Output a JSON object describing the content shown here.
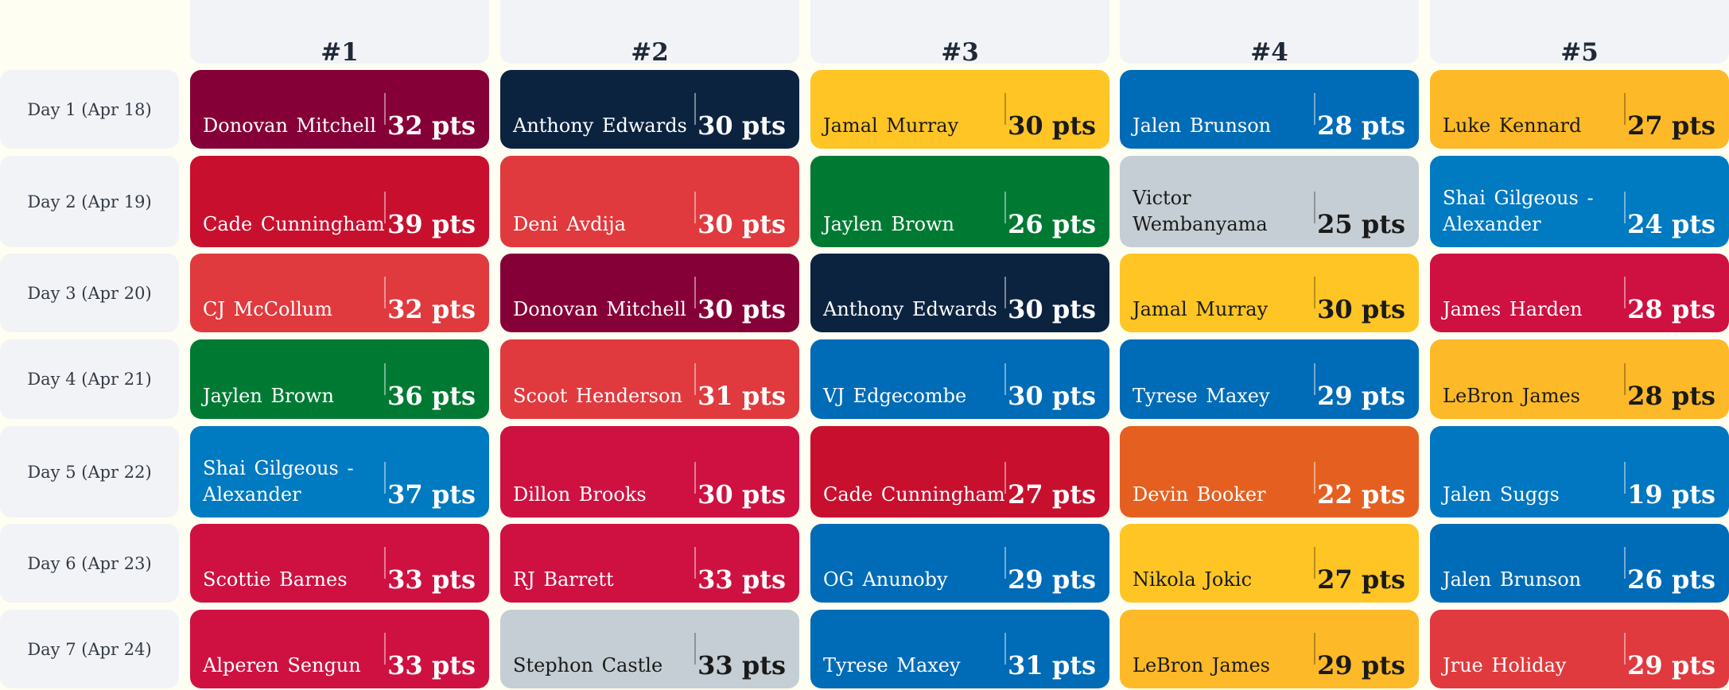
{
  "headers": [
    "#1",
    "#2",
    "#3",
    "#4",
    "#5"
  ],
  "colors": {
    "page_bg": "#fefef2",
    "header_bg": "#f2f3f7",
    "cavaliers": "#860038",
    "timberwolves": "#0c2340",
    "nuggets": "#fec524",
    "knicks": "#006bb6",
    "magic": "#0077c0",
    "pistons": "#c8102e",
    "wizards": "#e03a3e",
    "celtics": "#007a33",
    "spurs": "#c4ced4",
    "thunder": "#007ac1",
    "clippers": "#c8102e",
    "blazers": "#e03a3e",
    "grizzlies": "#0066b6",
    "sixers": "#006bb6",
    "lakers": "#fdb927",
    "suns": "#e56020",
    "raptors": "#ce1141",
    "rockets": "#ce1141",
    "hawks": "#e03a3e"
  },
  "rows": [
    {
      "day": "Day 1 (Apr 18)",
      "players": [
        {
          "name": "Donovan Mitchell",
          "pts": "32 pts",
          "color": "#860038",
          "text": "light"
        },
        {
          "name": "Anthony Edwards",
          "pts": "30 pts",
          "color": "#0c2340",
          "text": "light"
        },
        {
          "name": "Jamal Murray",
          "pts": "30 pts",
          "color": "#fec524",
          "text": "dark"
        },
        {
          "name": "Jalen Brunson",
          "pts": "28 pts",
          "color": "#006bb6",
          "text": "light"
        },
        {
          "name": "Luke Kennard",
          "pts": "27 pts",
          "color": "#fdb927",
          "text": "dark"
        }
      ]
    },
    {
      "day": "Day 2 (Apr 19)",
      "players": [
        {
          "name": "Cade Cunningham",
          "pts": "39 pts",
          "color": "#c8102e",
          "text": "light"
        },
        {
          "name": "Deni Avdija",
          "pts": "30 pts",
          "color": "#e03a3e",
          "text": "light"
        },
        {
          "name": "Jaylen Brown",
          "pts": "26 pts",
          "color": "#007a33",
          "text": "light"
        },
        {
          "name": "Victor Wembanyama",
          "pts": "25 pts",
          "color": "#c4ced4",
          "text": "dark"
        },
        {
          "name": "Shai Gilgeous - Alexander",
          "pts": "24 pts",
          "color": "#007ac1",
          "text": "light"
        }
      ]
    },
    {
      "day": "Day 3 (Apr 20)",
      "players": [
        {
          "name": "CJ McCollum",
          "pts": "32 pts",
          "color": "#e03a3e",
          "text": "light"
        },
        {
          "name": "Donovan Mitchell",
          "pts": "30 pts",
          "color": "#860038",
          "text": "light"
        },
        {
          "name": "Anthony Edwards",
          "pts": "30 pts",
          "color": "#0c2340",
          "text": "light"
        },
        {
          "name": "Jamal Murray",
          "pts": "30 pts",
          "color": "#fec524",
          "text": "dark"
        },
        {
          "name": "James Harden",
          "pts": "28 pts",
          "color": "#ce1141",
          "text": "light"
        }
      ]
    },
    {
      "day": "Day 4 (Apr 21)",
      "players": [
        {
          "name": "Jaylen Brown",
          "pts": "36 pts",
          "color": "#007a33",
          "text": "light"
        },
        {
          "name": "Scoot Henderson",
          "pts": "31 pts",
          "color": "#e03a3e",
          "text": "light"
        },
        {
          "name": "VJ Edgecombe",
          "pts": "30 pts",
          "color": "#006bb6",
          "text": "light"
        },
        {
          "name": "Tyrese Maxey",
          "pts": "29 pts",
          "color": "#006bb6",
          "text": "light"
        },
        {
          "name": "LeBron James",
          "pts": "28 pts",
          "color": "#fdb927",
          "text": "dark"
        }
      ]
    },
    {
      "day": "Day 5 (Apr 22)",
      "players": [
        {
          "name": "Shai Gilgeous - Alexander",
          "pts": "37 pts",
          "color": "#007ac1",
          "text": "light"
        },
        {
          "name": "Dillon Brooks",
          "pts": "30 pts",
          "color": "#ce1141",
          "text": "light"
        },
        {
          "name": "Cade Cunningham",
          "pts": "27 pts",
          "color": "#c8102e",
          "text": "light"
        },
        {
          "name": "Devin Booker",
          "pts": "22 pts",
          "color": "#e56020",
          "text": "light"
        },
        {
          "name": "Jalen Suggs",
          "pts": "19 pts",
          "color": "#0077c0",
          "text": "light"
        }
      ]
    },
    {
      "day": "Day 6 (Apr 23)",
      "players": [
        {
          "name": "Scottie Barnes",
          "pts": "33 pts",
          "color": "#ce1141",
          "text": "light"
        },
        {
          "name": "RJ Barrett",
          "pts": "33 pts",
          "color": "#ce1141",
          "text": "light"
        },
        {
          "name": "OG Anunoby",
          "pts": "29 pts",
          "color": "#006bb6",
          "text": "light"
        },
        {
          "name": "Nikola Jokic",
          "pts": "27 pts",
          "color": "#fec524",
          "text": "dark"
        },
        {
          "name": "Jalen Brunson",
          "pts": "26 pts",
          "color": "#006bb6",
          "text": "light"
        }
      ]
    },
    {
      "day": "Day 7 (Apr 24)",
      "players": [
        {
          "name": "Alperen Sengun",
          "pts": "33 pts",
          "color": "#ce1141",
          "text": "light"
        },
        {
          "name": "Stephon Castle",
          "pts": "33 pts",
          "color": "#c4ced4",
          "text": "dark"
        },
        {
          "name": "Tyrese Maxey",
          "pts": "31 pts",
          "color": "#006bb6",
          "text": "light"
        },
        {
          "name": "LeBron James",
          "pts": "29 pts",
          "color": "#fdb927",
          "text": "dark"
        },
        {
          "name": "Jrue Holiday",
          "pts": "29 pts",
          "color": "#e03a3e",
          "text": "light"
        }
      ]
    }
  ]
}
